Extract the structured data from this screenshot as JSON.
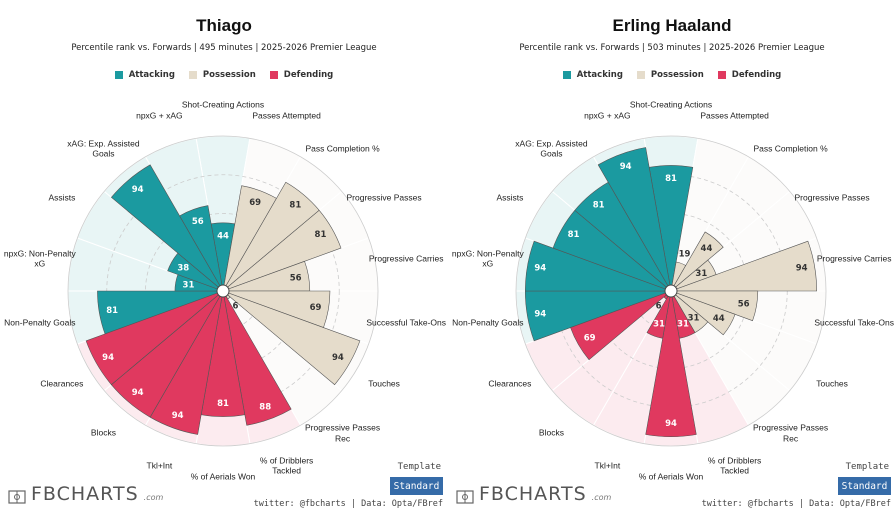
{
  "chart_data": [
    {
      "type": "polar-bar",
      "title": "Thiago",
      "subtitle": "Percentile rank vs. Forwards | 495 minutes | 2025-2026 Premier League",
      "categories": [
        "Shot-Creating Actions",
        "Passes Attempted",
        "Pass Completion %",
        "Progressive Passes",
        "Progressive Carries",
        "Successful Take-Ons",
        "Touches",
        "Progressive Passes Rec",
        "% of Dribblers Tackled",
        "% of Aerials Won",
        "Tkl+Int",
        "Blocks",
        "Clearances",
        "Non-Penalty Goals",
        "npxG: Non-Penalty xG",
        "Assists",
        "xAG: Exp. Assisted Goals",
        "npxG + xAG"
      ],
      "series": [
        {
          "name": "Attacking",
          "color": "#1b9aa0",
          "values": [
            44,
            null,
            null,
            null,
            null,
            null,
            null,
            null,
            null,
            null,
            null,
            null,
            null,
            81,
            31,
            38,
            94,
            56
          ]
        },
        {
          "name": "Possession",
          "color": "#e5dccb",
          "values": [
            null,
            69,
            81,
            81,
            56,
            69,
            94,
            6,
            null,
            null,
            null,
            null,
            null,
            null,
            null,
            null,
            null,
            null
          ]
        },
        {
          "name": "Defending",
          "color": "#e0395f",
          "values": [
            null,
            null,
            null,
            null,
            null,
            null,
            null,
            null,
            88,
            81,
            94,
            94,
            94,
            null,
            null,
            null,
            null,
            null
          ]
        }
      ],
      "rlim": [
        0,
        100
      ],
      "rticks": [
        25,
        50,
        75,
        100
      ]
    },
    {
      "type": "polar-bar",
      "title": "Erling Haaland",
      "subtitle": "Percentile rank vs. Forwards | 503 minutes | 2025-2026 Premier League",
      "categories": [
        "Shot-Creating Actions",
        "Passes Attempted",
        "Pass Completion %",
        "Progressive Passes",
        "Progressive Carries",
        "Successful Take-Ons",
        "Touches",
        "Progressive Passes Rec",
        "% of Dribblers Tackled",
        "% of Aerials Won",
        "Tkl+Int",
        "Blocks",
        "Clearances",
        "Non-Penalty Goals",
        "npxG: Non-Penalty xG",
        "Assists",
        "xAG: Exp. Assisted Goals",
        "npxG + xAG"
      ],
      "series": [
        {
          "name": "Attacking",
          "color": "#1b9aa0",
          "values": [
            81,
            null,
            null,
            null,
            null,
            null,
            null,
            null,
            null,
            null,
            null,
            null,
            null,
            94,
            94,
            81,
            81,
            94
          ]
        },
        {
          "name": "Possession",
          "color": "#e5dccb",
          "values": [
            null,
            19,
            44,
            31,
            94,
            56,
            44,
            31,
            null,
            null,
            null,
            null,
            null,
            null,
            null,
            null,
            null,
            null
          ]
        },
        {
          "name": "Defending",
          "color": "#e0395f",
          "values": [
            null,
            null,
            null,
            null,
            null,
            null,
            null,
            null,
            31,
            94,
            31,
            6,
            69,
            null,
            null,
            null,
            null,
            null
          ]
        }
      ],
      "rlim": [
        0,
        100
      ],
      "rticks": [
        25,
        50,
        75,
        100
      ]
    }
  ],
  "footer": {
    "brand": "FBCHARTS",
    "brand_suffix": ".com",
    "template_label": "Template",
    "template_button": "Standard",
    "credit": "twitter: @fbcharts | Data: Opta/FBref"
  }
}
